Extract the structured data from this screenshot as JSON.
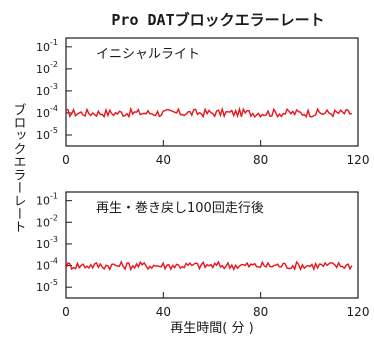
{
  "title": "Pro  DATブロックエラーレート",
  "ylabel": "ブロックエラーレート",
  "xlabel": "再生時間( 分 )",
  "colors": {
    "series": "#e8141b",
    "axis": "#1a1a1a"
  },
  "chart_data": [
    {
      "type": "line",
      "annotation": "イニシャルライト",
      "xlim": [
        0,
        120
      ],
      "ylim_exponent": [
        -5.5,
        -0.6
      ],
      "y_scale": "log",
      "xticks": [
        "0",
        "40",
        "80",
        "120"
      ],
      "yticks": [
        {
          "base": "10",
          "exp": "-1"
        },
        {
          "base": "10",
          "exp": "-2"
        },
        {
          "base": "10",
          "exp": "-3"
        },
        {
          "base": "10",
          "exp": "-4"
        },
        {
          "base": "10",
          "exp": "-5"
        }
      ],
      "series": [
        {
          "level": 0.0001,
          "x": [
            0,
            117.5
          ]
        }
      ]
    },
    {
      "type": "line",
      "annotation": "再生・巻き戻し100回走行後",
      "xlim": [
        0,
        120
      ],
      "ylim_exponent": [
        -5.5,
        -0.6
      ],
      "y_scale": "log",
      "xticks": [
        "0",
        "40",
        "80",
        "120"
      ],
      "yticks": [
        {
          "base": "10",
          "exp": "-1"
        },
        {
          "base": "10",
          "exp": "-2"
        },
        {
          "base": "10",
          "exp": "-3"
        },
        {
          "base": "10",
          "exp": "-4"
        },
        {
          "base": "10",
          "exp": "-5"
        }
      ],
      "series": [
        {
          "level": 0.0001,
          "x": [
            0,
            117.5
          ]
        }
      ]
    }
  ]
}
